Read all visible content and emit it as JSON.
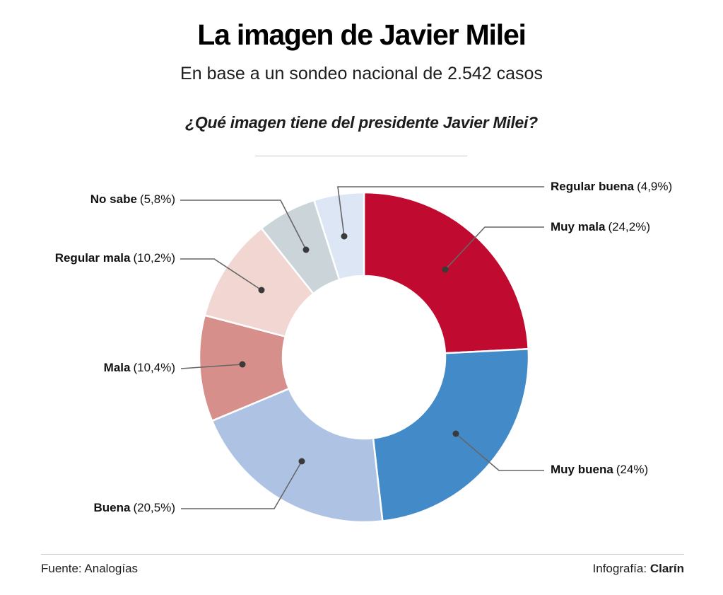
{
  "header": {
    "title": "La imagen de Javier Milei",
    "subtitle": "En base a un sondeo nacional de 2.542 casos",
    "question": "¿Qué imagen tiene del presidente Javier Milei?"
  },
  "chart_data": {
    "type": "pie",
    "subtype": "donut",
    "unit": "%",
    "start_angle_deg": 0,
    "direction": "clockwise",
    "inner_radius_ratio": 0.49,
    "legend_position": "callout-labels",
    "slices": [
      {
        "id": "muy-mala",
        "label": "Muy mala",
        "value": 24.2,
        "display": "(24,2%)",
        "color": "#C00A30"
      },
      {
        "id": "muy-buena",
        "label": "Muy buena",
        "value": 24.0,
        "display": "(24%)",
        "color": "#428BC8"
      },
      {
        "id": "buena",
        "label": "Buena",
        "value": 20.5,
        "display": "(20,5%)",
        "color": "#AEC3E4"
      },
      {
        "id": "mala",
        "label": "Mala",
        "value": 10.4,
        "display": "(10,4%)",
        "color": "#D68F8A"
      },
      {
        "id": "regular-mala",
        "label": "Regular mala",
        "value": 10.2,
        "display": "(10,2%)",
        "color": "#F1D6D2"
      },
      {
        "id": "no-sabe",
        "label": "No sabe",
        "value": 5.8,
        "display": "(5,8%)",
        "color": "#CBD4D9"
      },
      {
        "id": "regular-buena",
        "label": "Regular buena",
        "value": 4.9,
        "display": "(4,9%)",
        "color": "#DCE6F5"
      }
    ],
    "leader_color": "#666666",
    "dot_color": "#3A3A3A"
  },
  "footer": {
    "source": "Fuente: Analogías",
    "credit_label": "Infografía: ",
    "credit_name": "Clarín"
  }
}
